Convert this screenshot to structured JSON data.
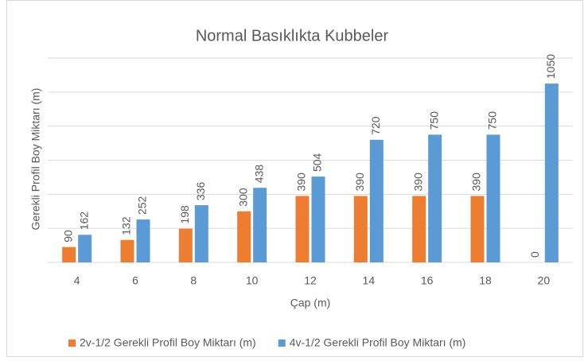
{
  "chart_data": {
    "type": "bar",
    "title": "Normal Basıklıkta Kubbeler",
    "x_label": "Çap (m)",
    "y_label": "Gerekli Profil Boy Miktarı (m)",
    "categories": [
      "4",
      "6",
      "8",
      "10",
      "12",
      "14",
      "16",
      "18",
      "20"
    ],
    "series": [
      {
        "name": "2v-1/2 Gerekli Profil Boy Miktarı (m)",
        "color": "#ed7d31",
        "values": [
          90,
          132,
          198,
          300,
          390,
          390,
          390,
          390,
          0
        ]
      },
      {
        "name": "4v-1/2 Gerekli Profil Boy Miktarı (m)",
        "color": "#5b9bd5",
        "values": [
          162,
          252,
          336,
          438,
          504,
          720,
          750,
          750,
          1050
        ]
      }
    ],
    "ylim": [
      0,
      1200
    ],
    "yticks": [
      0,
      200,
      400,
      600,
      800,
      1000,
      1200
    ],
    "grid": true,
    "legend": "bottom"
  }
}
